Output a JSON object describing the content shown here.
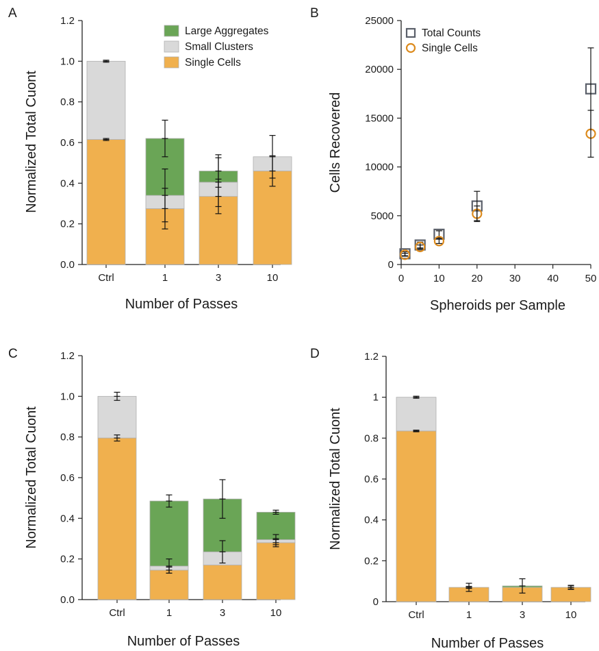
{
  "colors": {
    "single": "#f0b04e",
    "small": "#d9d9d9",
    "large": "#6aa556",
    "bar_edge": "#b0b0b0",
    "square_marker": "#5a5f69",
    "circle_marker": "#dc8a1c",
    "axis": "#222222"
  },
  "chart_data": [
    {
      "panel": "A",
      "type": "bar",
      "stacked": true,
      "xlabel": "Number of Passes",
      "ylabel": "Normalized Total Cuont",
      "categories": [
        "Ctrl",
        "1",
        "3",
        "10"
      ],
      "ylim": [
        0,
        1.2
      ],
      "yticks": [
        0,
        0.2,
        0.4,
        0.6,
        0.8,
        1.0,
        1.2
      ],
      "ytick_labels": [
        "0.0",
        "0.2",
        "0.4",
        "0.6",
        "0.8",
        "1.0",
        "1.2"
      ],
      "legend": [
        "Large Aggregates",
        "Small Clusters",
        "Single Cells"
      ],
      "legend_position": "top-right",
      "series": [
        {
          "name": "Single Cells",
          "values": [
            0.615,
            0.275,
            0.335,
            0.46
          ],
          "errors": [
            0.005,
            0.1,
            0.085,
            0.075
          ],
          "color_key": "single"
        },
        {
          "name": "Small Clusters",
          "values": [
            0.385,
            0.065,
            0.07,
            0.07
          ],
          "errors": [
            0.005,
            0.13,
            0.12,
            0.0
          ],
          "color_key": "small"
        },
        {
          "name": "Large Aggregates",
          "values": [
            0.0,
            0.28,
            0.055,
            0.0
          ],
          "errors": [
            0.0,
            0.09,
            0.08,
            0.105
          ],
          "color_key": "large"
        }
      ]
    },
    {
      "panel": "B",
      "type": "scatter",
      "xlabel": "Spheroids per Sample",
      "ylabel": "Cells Recovered",
      "xlim": [
        0,
        50
      ],
      "xticks": [
        0,
        10,
        20,
        30,
        40,
        50
      ],
      "ylim": [
        0,
        25000
      ],
      "yticks": [
        0,
        5000,
        10000,
        15000,
        20000,
        25000
      ],
      "legend": [
        "Total Counts",
        "Single Cells"
      ],
      "legend_position": "top-left",
      "series": [
        {
          "name": "Total Counts",
          "marker": "square",
          "color_key": "square_marker",
          "x": [
            1,
            5,
            10,
            20,
            50
          ],
          "y": [
            1100,
            2000,
            3100,
            6000,
            18000
          ],
          "errors": [
            200,
            300,
            350,
            1500,
            4200
          ]
        },
        {
          "name": "Single Cells",
          "marker": "circle",
          "color_key": "circle_marker",
          "x": [
            1,
            5,
            10,
            20,
            50
          ],
          "y": [
            1000,
            1800,
            2400,
            5200,
            13400
          ],
          "errors": [
            150,
            200,
            250,
            800,
            2400
          ]
        }
      ]
    },
    {
      "panel": "C",
      "type": "bar",
      "stacked": true,
      "xlabel": "Number of Passes",
      "ylabel": "Normalized Total Cuont",
      "categories": [
        "Ctrl",
        "1",
        "3",
        "10"
      ],
      "ylim": [
        0,
        1.2
      ],
      "yticks": [
        0,
        0.2,
        0.4,
        0.6,
        0.8,
        1.0,
        1.2
      ],
      "ytick_labels": [
        "0.0",
        "0.2",
        "0.4",
        "0.6",
        "0.8",
        "1.0",
        "1.2"
      ],
      "series": [
        {
          "name": "Single Cells",
          "values": [
            0.795,
            0.145,
            0.17,
            0.28
          ],
          "errors": [
            0.015,
            0.015,
            0.0,
            0.02
          ],
          "color_key": "single"
        },
        {
          "name": "Small Clusters",
          "values": [
            0.205,
            0.02,
            0.065,
            0.015
          ],
          "errors": [
            0.02,
            0.035,
            0.055,
            0.025
          ],
          "color_key": "small"
        },
        {
          "name": "Large Aggregates",
          "values": [
            0.0,
            0.32,
            0.26,
            0.135
          ],
          "errors": [
            0.0,
            0.03,
            0.095,
            0.01
          ],
          "color_key": "large"
        }
      ]
    },
    {
      "panel": "D",
      "type": "bar",
      "stacked": true,
      "xlabel": "Number of Passes",
      "ylabel": "Normalized Total Cuont",
      "categories": [
        "Ctrl",
        "1",
        "3",
        "10"
      ],
      "ylim": [
        0,
        1.2
      ],
      "yticks": [
        0,
        0.2,
        0.4,
        0.6,
        0.8,
        1.0,
        1.2
      ],
      "ytick_labels": [
        "0",
        "0.2",
        "0.4",
        "0.6",
        "0.8",
        "1",
        "1.2"
      ],
      "series": [
        {
          "name": "Single Cells",
          "values": [
            0.835,
            0.07,
            0.07,
            0.07
          ],
          "errors": [
            0.004,
            0.005,
            0.0,
            0.01
          ],
          "color_key": "single"
        },
        {
          "name": "Small Clusters",
          "values": [
            0.165,
            0.0,
            0.0,
            0.0
          ],
          "errors": [
            0.005,
            0.02,
            0.0,
            0.0
          ],
          "color_key": "small"
        },
        {
          "name": "Large Aggregates",
          "values": [
            0.0,
            0.0,
            0.007,
            0.0
          ],
          "errors": [
            0.0,
            0.0,
            0.035,
            0.008
          ],
          "color_key": "large"
        }
      ]
    }
  ]
}
